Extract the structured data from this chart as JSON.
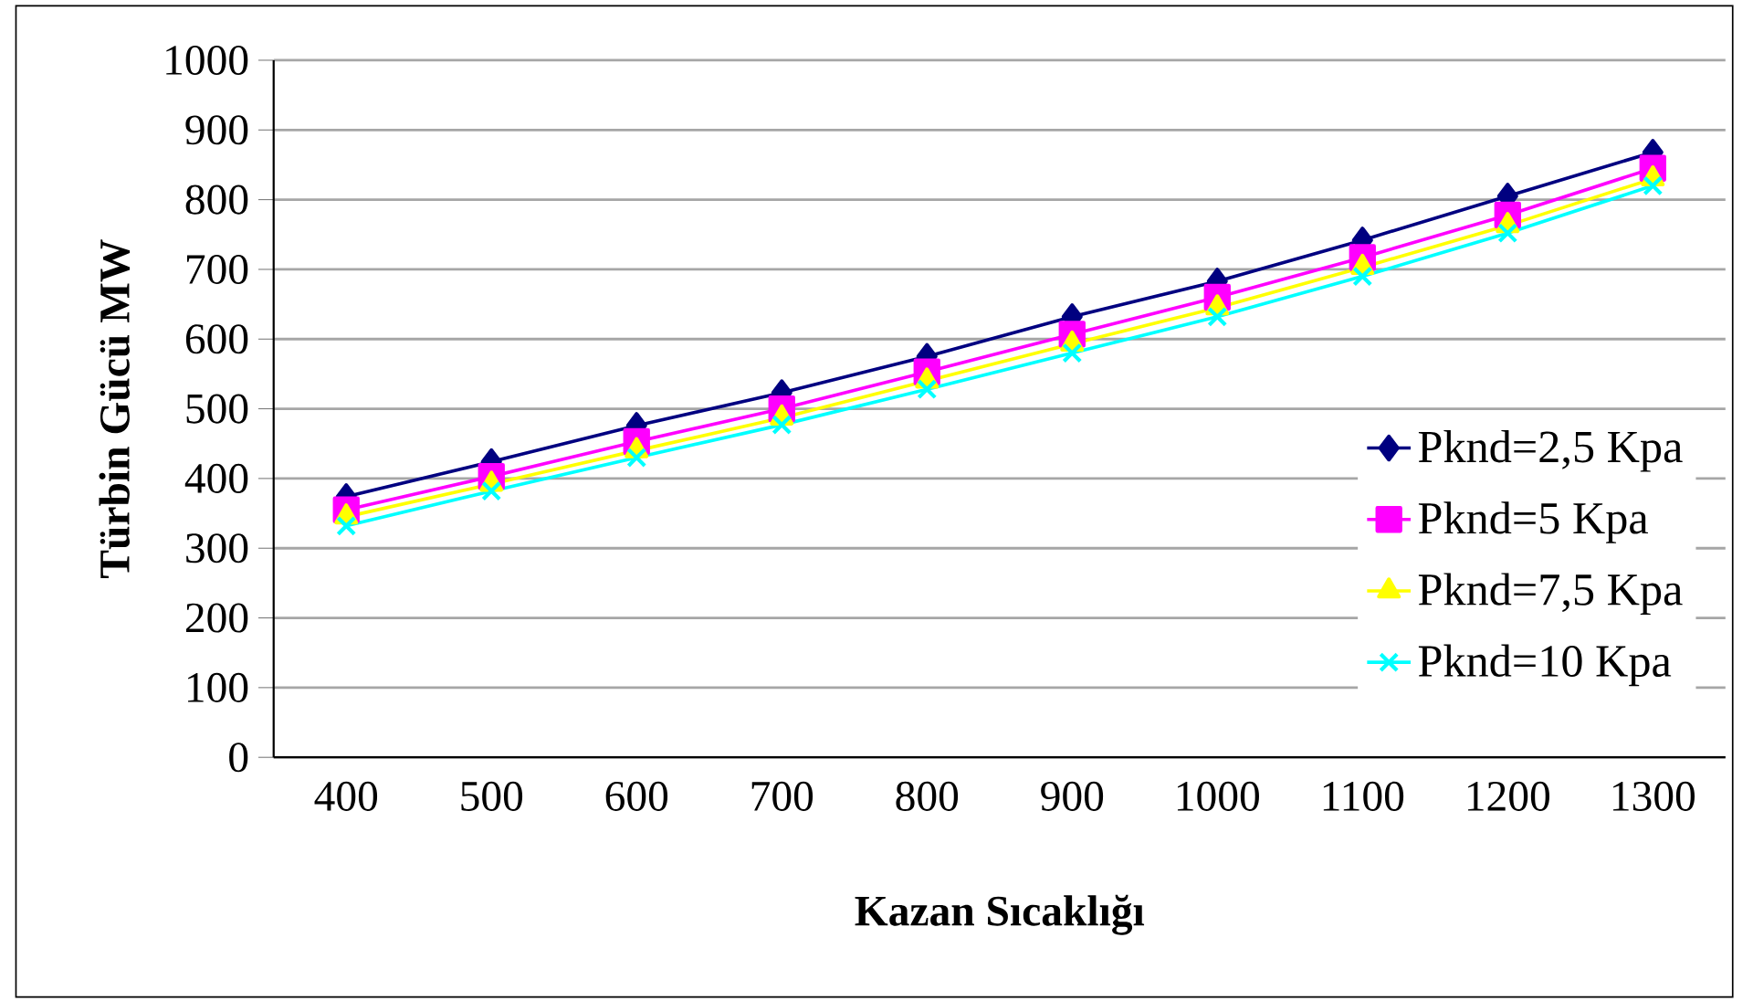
{
  "chart_data": {
    "type": "line",
    "xlabel": "Kazan Sıcaklığı",
    "ylabel": "Türbin Gücü  MW",
    "categories": [
      "400",
      "500",
      "600",
      "700",
      "800",
      "900",
      "1000",
      "1100",
      "1200",
      "1300"
    ],
    "series": [
      {
        "name": "Pknd=2,5 Kpa",
        "color": "#000080",
        "marker": "diamond",
        "values": [
          374,
          424,
          476,
          523,
          575,
          632,
          683,
          742,
          805,
          868
        ]
      },
      {
        "name": "Pknd=5 Kpa",
        "color": "#ff00ff",
        "marker": "square",
        "values": [
          355,
          403,
          453,
          500,
          553,
          607,
          660,
          717,
          778,
          845
        ]
      },
      {
        "name": "Pknd=7,5 Kpa",
        "color": "#ffff00",
        "marker": "triangle",
        "values": [
          345,
          392,
          440,
          487,
          540,
          593,
          645,
          703,
          763,
          830
        ]
      },
      {
        "name": "Pknd=10 Kpa",
        "color": "#00ffff",
        "marker": "cross",
        "values": [
          332,
          382,
          430,
          477,
          528,
          580,
          632,
          690,
          752,
          820
        ]
      }
    ],
    "ylim": [
      0,
      1000
    ],
    "yticks": [
      0,
      100,
      200,
      300,
      400,
      500,
      600,
      700,
      800,
      900,
      1000
    ],
    "grid": "y",
    "legend": "right"
  }
}
